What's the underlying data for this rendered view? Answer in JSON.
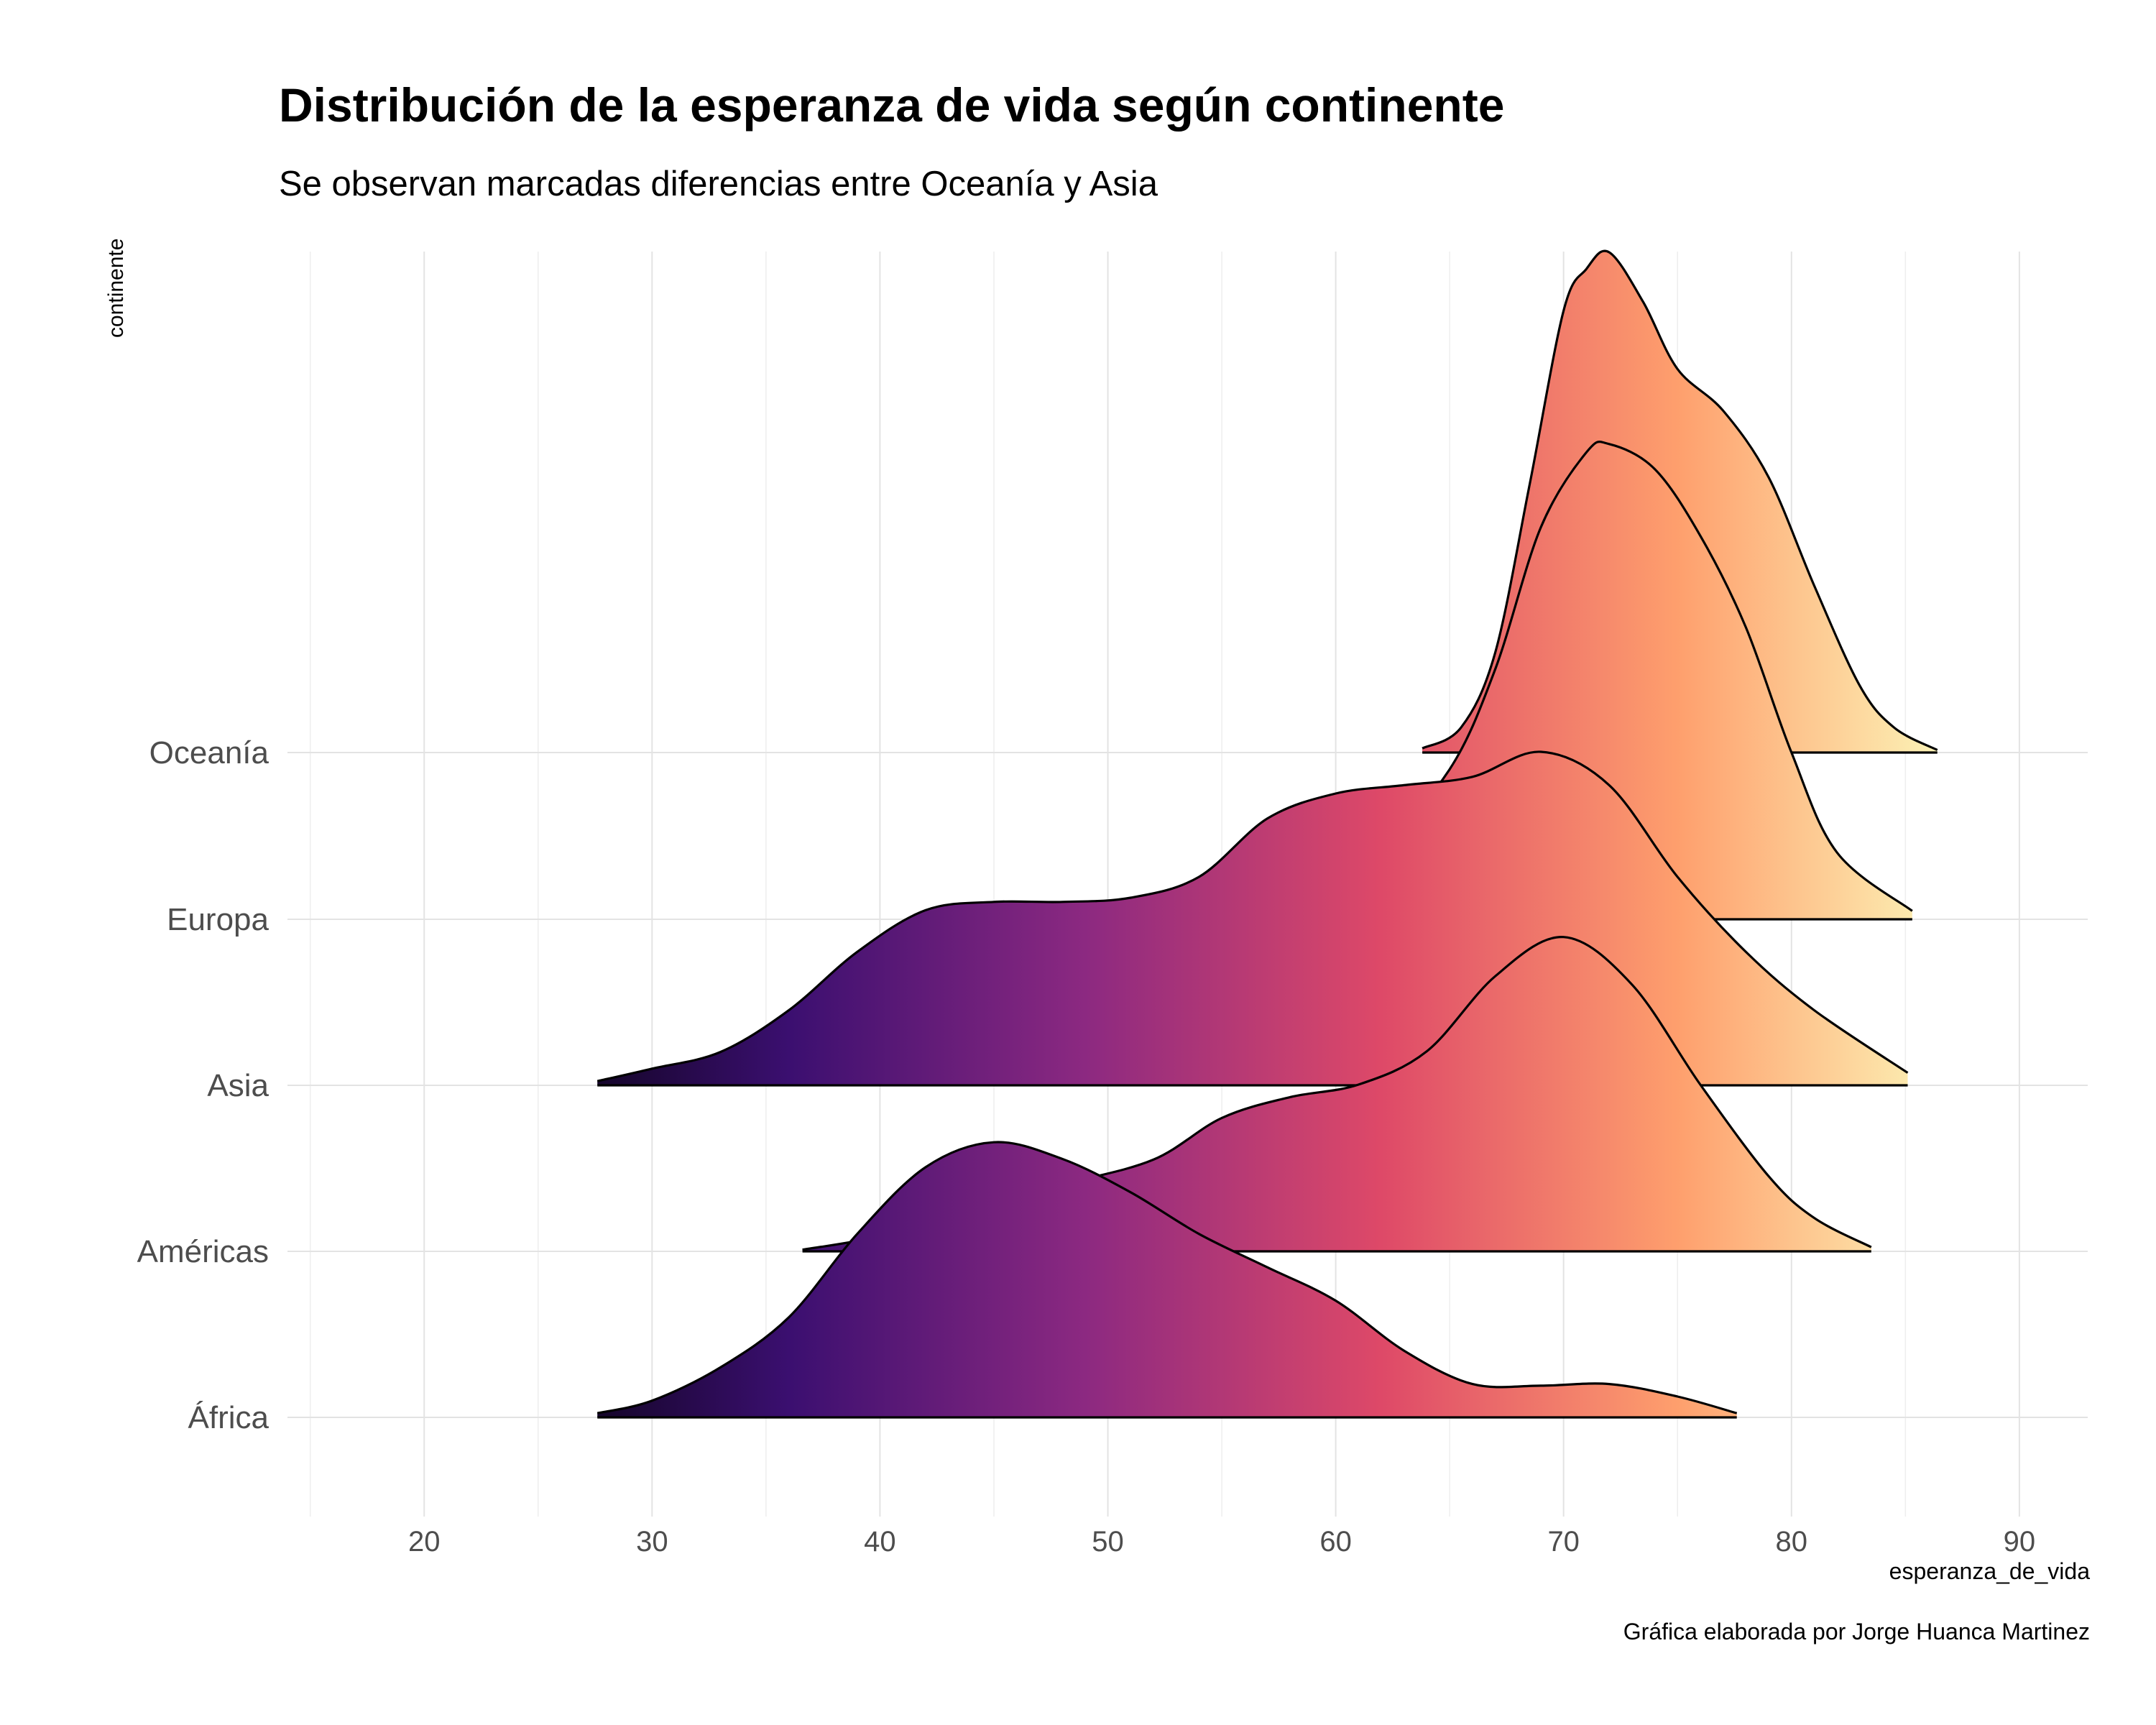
{
  "chart_data": {
    "type": "ridgeline",
    "title": "Distribución de la esperanza de vida según continente",
    "subtitle": "Se observan marcadas diferencias entre Oceanía y Asia",
    "xlabel": "esperanza_de_vida",
    "ylabel": "continente",
    "caption": "Gráfica elaborada por Jorge Huanca Martinez",
    "xlim": [
      14,
      93
    ],
    "x_ticks": [
      20,
      30,
      40,
      50,
      60,
      70,
      80,
      90
    ],
    "fill": {
      "type": "gradient-by-x",
      "palette": "magma",
      "domain": [
        23,
        88
      ],
      "colors": [
        "#000004",
        "#3b0f70",
        "#8c2981",
        "#de4968",
        "#fe9f6d",
        "#fcfdbf"
      ]
    },
    "grid": true,
    "series": [
      {
        "name": "África",
        "x": [
          27.6,
          30,
          33,
          36,
          39,
          42,
          45,
          48,
          51,
          54,
          57,
          60,
          63,
          66,
          69,
          72,
          75,
          77.6
        ],
        "density": [
          0.05,
          0.2,
          0.6,
          1.2,
          2.2,
          3.0,
          3.3,
          3.1,
          2.7,
          2.2,
          1.8,
          1.4,
          0.8,
          0.4,
          0.38,
          0.4,
          0.25,
          0.05
        ]
      },
      {
        "name": "Américas",
        "x": [
          36.6,
          40,
          44,
          48,
          52,
          55,
          58,
          61,
          64,
          67,
          70,
          73,
          76,
          79,
          81,
          83.5
        ],
        "density": [
          0.02,
          0.18,
          0.5,
          0.8,
          1.1,
          1.6,
          1.85,
          2.0,
          2.4,
          3.3,
          3.77,
          3.2,
          2.0,
          0.9,
          0.4,
          0.05
        ]
      },
      {
        "name": "Asia",
        "x": [
          27.6,
          30,
          33,
          36,
          39,
          42,
          45,
          48,
          51,
          54,
          57,
          60,
          63,
          66,
          69,
          72,
          75,
          78,
          81,
          85.1
        ],
        "density": [
          0.05,
          0.2,
          0.4,
          0.9,
          1.6,
          2.1,
          2.2,
          2.2,
          2.25,
          2.5,
          3.2,
          3.5,
          3.6,
          3.7,
          4.0,
          3.6,
          2.5,
          1.6,
          0.9,
          0.15
        ]
      },
      {
        "name": "Europa",
        "x": [
          50.1,
          53,
          56,
          59,
          62,
          65,
          67,
          69,
          71,
          72,
          74,
          76,
          78,
          80,
          82,
          85.3
        ],
        "density": [
          0.05,
          0.15,
          0.3,
          0.55,
          0.9,
          1.8,
          3.0,
          4.7,
          5.6,
          5.7,
          5.4,
          4.6,
          3.5,
          2.0,
          0.8,
          0.1
        ]
      },
      {
        "name": "Oceanía",
        "x": [
          63.8,
          65.5,
          67,
          68.5,
          70,
          71,
          72,
          73.5,
          75,
          77,
          79,
          81,
          83,
          84.5,
          86.4
        ],
        "density": [
          0.05,
          0.3,
          1.2,
          3.2,
          5.3,
          5.8,
          6.0,
          5.4,
          4.6,
          4.1,
          3.3,
          2.0,
          0.8,
          0.3,
          0.03
        ]
      }
    ]
  }
}
